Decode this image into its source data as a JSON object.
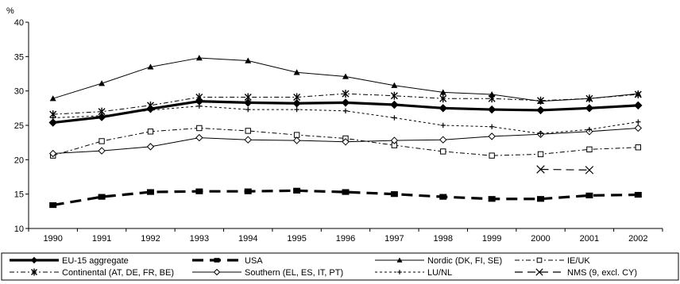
{
  "chart_data": {
    "type": "line",
    "title": "",
    "xlabel": "",
    "ylabel": "%",
    "ylim": [
      10,
      40
    ],
    "yticks": [
      "10",
      "15",
      "20",
      "25",
      "30",
      "35",
      "40"
    ],
    "categories": [
      "1990",
      "1991",
      "1992",
      "1993",
      "1994",
      "1995",
      "1996",
      "1997",
      "1998",
      "1999",
      "2000",
      "2001",
      "2002"
    ],
    "grid": false,
    "legend": "bottom",
    "series": [
      {
        "name": "EU-15 aggregate",
        "style": "thick-solid",
        "marker": "diamond-filled",
        "values": [
          25.4,
          26.2,
          27.4,
          28.5,
          28.3,
          28.2,
          28.3,
          28.0,
          27.5,
          27.3,
          27.2,
          27.5,
          27.9
        ]
      },
      {
        "name": "USA",
        "style": "thick-dash",
        "marker": "square-filled",
        "values": [
          13.4,
          14.6,
          15.3,
          15.4,
          15.4,
          15.5,
          15.3,
          15.0,
          14.6,
          14.3,
          14.3,
          14.8,
          14.9
        ]
      },
      {
        "name": "Nordic (DK, FI, SE)",
        "style": "solid",
        "marker": "triangle-filled",
        "values": [
          28.9,
          31.1,
          33.5,
          34.8,
          34.4,
          32.7,
          32.1,
          30.8,
          29.8,
          29.5,
          28.5,
          28.9,
          29.6
        ]
      },
      {
        "name": "IE/UK",
        "style": "dash-dot",
        "marker": "square-open",
        "values": [
          20.6,
          22.7,
          24.1,
          24.6,
          24.2,
          23.6,
          23.1,
          22.1,
          21.2,
          20.6,
          20.8,
          21.5,
          21.8
        ]
      },
      {
        "name": "Continental (AT, DE, FR, BE)",
        "style": "dash-dot",
        "marker": "star",
        "values": [
          26.6,
          27.0,
          27.9,
          29.1,
          29.1,
          29.1,
          29.6,
          29.3,
          28.9,
          28.9,
          28.6,
          28.9,
          29.5
        ]
      },
      {
        "name": "Southern (EL, ES, IT, PT)",
        "style": "solid",
        "marker": "diamond-open",
        "values": [
          20.9,
          21.3,
          21.9,
          23.2,
          22.9,
          22.8,
          22.6,
          22.8,
          22.9,
          23.4,
          23.7,
          24.1,
          24.6
        ]
      },
      {
        "name": "LU/NL",
        "style": "dotted",
        "marker": "plus",
        "values": [
          26.1,
          26.4,
          27.2,
          27.8,
          27.3,
          27.3,
          27.1,
          26.1,
          25.0,
          24.8,
          23.8,
          24.4,
          25.5
        ]
      },
      {
        "name": "NMS (9, excl. CY)",
        "style": "long-dash",
        "marker": "x",
        "values": [
          null,
          null,
          null,
          null,
          null,
          null,
          null,
          null,
          null,
          null,
          18.6,
          18.5,
          null
        ]
      }
    ]
  }
}
